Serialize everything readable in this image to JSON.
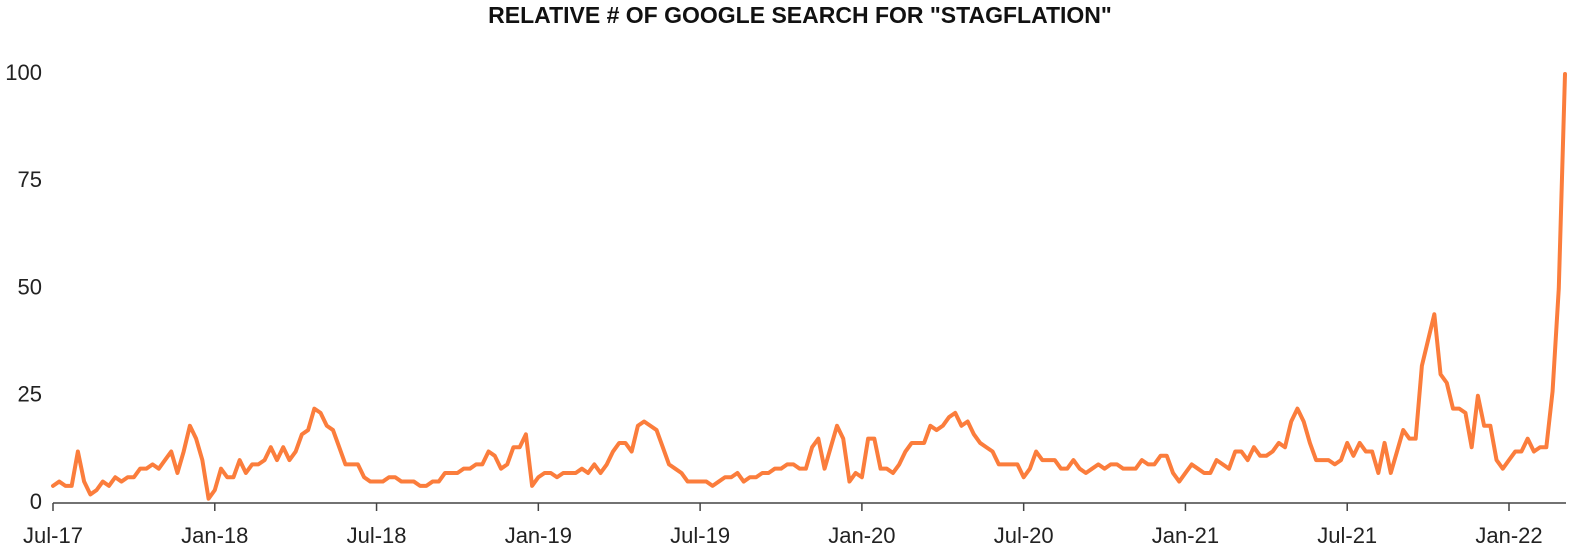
{
  "chart_data": {
    "type": "line",
    "title": "RELATIVE # OF GOOGLE SEARCH FOR \"STAGFLATION\"",
    "categories": [
      "Jul-17",
      null,
      null,
      null,
      null,
      null,
      null,
      null,
      null,
      null,
      null,
      null,
      null,
      null,
      null,
      null,
      null,
      null,
      null,
      null,
      null,
      null,
      null,
      null,
      null,
      null,
      "Jan-18",
      null,
      null,
      null,
      null,
      null,
      null,
      null,
      null,
      null,
      null,
      null,
      null,
      null,
      null,
      null,
      null,
      null,
      null,
      null,
      null,
      null,
      null,
      null,
      null,
      null,
      "Jul-18",
      null,
      null,
      null,
      null,
      null,
      null,
      null,
      null,
      null,
      null,
      null,
      null,
      null,
      null,
      null,
      null,
      null,
      null,
      null,
      null,
      null,
      null,
      null,
      null,
      null,
      "Jan-19",
      null,
      null,
      null,
      null,
      null,
      null,
      null,
      null,
      null,
      null,
      null,
      null,
      null,
      null,
      null,
      null,
      null,
      null,
      null,
      null,
      null,
      null,
      null,
      null,
      null,
      "Jul-19",
      null,
      null,
      null,
      null,
      null,
      null,
      null,
      null,
      null,
      null,
      null,
      null,
      null,
      null,
      null,
      null,
      null,
      null,
      null,
      null,
      null,
      null,
      null,
      null,
      null,
      "Jan-20",
      null,
      null,
      null,
      null,
      null,
      null,
      null,
      null,
      null,
      null,
      null,
      null,
      null,
      null,
      null,
      null,
      null,
      null,
      null,
      null,
      null,
      null,
      null,
      null,
      null,
      "Jul-20",
      null,
      null,
      null,
      null,
      null,
      null,
      null,
      null,
      null,
      null,
      null,
      null,
      null,
      null,
      null,
      null,
      null,
      null,
      null,
      null,
      null,
      null,
      null,
      null,
      null,
      "Jan-21",
      null,
      null,
      null,
      null,
      null,
      null,
      null,
      null,
      null,
      null,
      null,
      null,
      null,
      null,
      null,
      null,
      null,
      null,
      null,
      null,
      null,
      null,
      null,
      null,
      null,
      "Jul-21",
      null,
      null,
      null,
      null,
      null,
      null,
      null,
      null,
      null,
      null,
      null,
      null,
      null,
      null,
      null,
      null,
      null,
      null,
      null,
      null,
      null,
      null,
      null,
      null,
      null,
      "Jan-22",
      null,
      null,
      null,
      null,
      null,
      null,
      null,
      null,
      null
    ],
    "values": [
      4,
      5,
      4,
      4,
      12,
      5,
      2,
      3,
      5,
      4,
      6,
      5,
      6,
      6,
      8,
      8,
      9,
      8,
      10,
      12,
      7,
      12,
      18,
      15,
      10,
      1,
      3,
      8,
      6,
      6,
      10,
      7,
      9,
      9,
      10,
      13,
      10,
      13,
      10,
      12,
      16,
      17,
      22,
      21,
      18,
      17,
      13,
      9,
      9,
      9,
      6,
      5,
      5,
      5,
      6,
      6,
      5,
      5,
      5,
      4,
      4,
      5,
      5,
      7,
      7,
      7,
      8,
      8,
      9,
      9,
      12,
      11,
      8,
      9,
      13,
      13,
      16,
      4,
      6,
      7,
      7,
      6,
      7,
      7,
      7,
      8,
      7,
      9,
      7,
      9,
      12,
      14,
      14,
      12,
      18,
      19,
      18,
      17,
      13,
      9,
      8,
      7,
      5,
      5,
      5,
      5,
      4,
      5,
      6,
      6,
      7,
      5,
      6,
      6,
      7,
      7,
      8,
      8,
      9,
      9,
      8,
      8,
      13,
      15,
      8,
      13,
      18,
      15,
      5,
      7,
      6,
      15,
      15,
      8,
      8,
      7,
      9,
      12,
      14,
      14,
      14,
      18,
      17,
      18,
      20,
      21,
      18,
      19,
      16,
      14,
      13,
      12,
      9,
      9,
      9,
      9,
      6,
      8,
      12,
      10,
      10,
      10,
      8,
      8,
      10,
      8,
      7,
      8,
      9,
      8,
      9,
      9,
      8,
      8,
      8,
      10,
      9,
      9,
      11,
      11,
      7,
      5,
      7,
      9,
      8,
      7,
      7,
      10,
      9,
      8,
      12,
      12,
      10,
      13,
      11,
      11,
      12,
      14,
      13,
      19,
      22,
      19,
      14,
      10,
      10,
      10,
      9,
      10,
      14,
      11,
      14,
      12,
      12,
      7,
      14,
      7,
      12,
      17,
      15,
      15,
      32,
      38,
      44,
      30,
      28,
      22,
      22,
      21,
      13,
      25,
      18,
      18,
      10,
      8,
      10,
      12,
      12,
      15,
      12,
      13,
      13,
      26,
      50,
      100
    ],
    "color": "#fb7d3c",
    "ylim": [
      0,
      100
    ],
    "yticks": [
      0,
      25,
      50,
      75,
      100
    ],
    "grid": false
  }
}
